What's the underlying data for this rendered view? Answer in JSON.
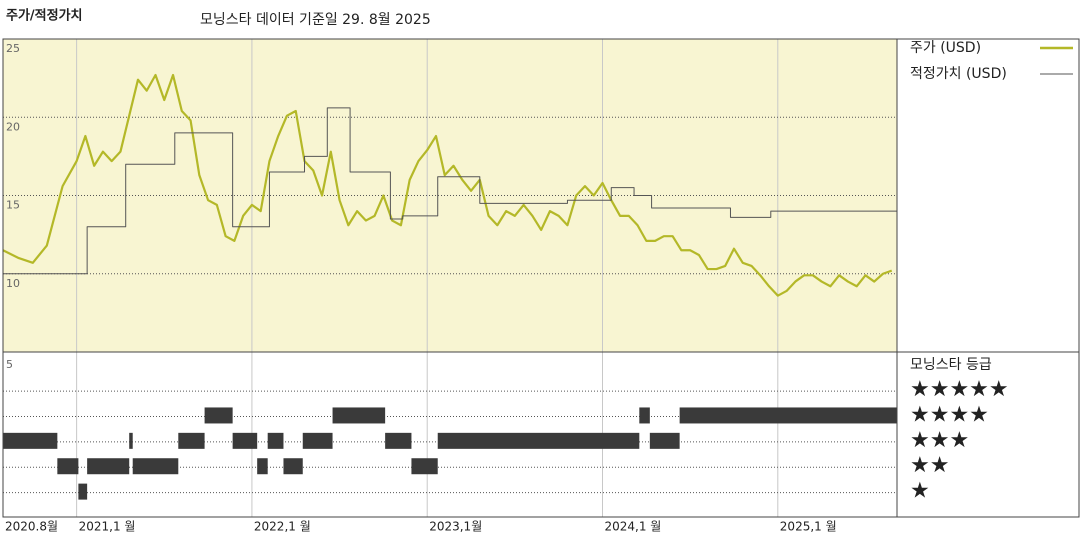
{
  "chart_data": [
    {
      "type": "line",
      "title": "주가/적정가치",
      "subtitle": "모닝스타 데이터 기준일 29. 8월 2025",
      "xlim": [
        2020.58,
        2025.68
      ],
      "xticks": [
        {
          "value": 2020.58,
          "label": "2020.8월"
        },
        {
          "value": 2021.0,
          "label": "2021,1 월"
        },
        {
          "value": 2022.0,
          "label": "2022,1 월"
        },
        {
          "value": 2023.0,
          "label": "2023,1월"
        },
        {
          "value": 2024.0,
          "label": "2024,1 월"
        },
        {
          "value": 2025.0,
          "label": "2025,1 월"
        }
      ],
      "ylim": [
        5,
        25
      ],
      "yticks": [
        10,
        15,
        20,
        25
      ],
      "grid": true,
      "background": "#f8f5d2",
      "series": [
        {
          "name": "주가 (USD)",
          "color": "#b4b828",
          "x": [
            2020.58,
            2020.67,
            2020.75,
            2020.83,
            2020.92,
            2021.0,
            2021.05,
            2021.1,
            2021.15,
            2021.2,
            2021.25,
            2021.3,
            2021.35,
            2021.4,
            2021.45,
            2021.5,
            2021.55,
            2021.6,
            2021.65,
            2021.7,
            2021.75,
            2021.8,
            2021.85,
            2021.9,
            2021.95,
            2022.0,
            2022.05,
            2022.1,
            2022.15,
            2022.2,
            2022.25,
            2022.3,
            2022.35,
            2022.4,
            2022.45,
            2022.5,
            2022.55,
            2022.6,
            2022.65,
            2022.7,
            2022.75,
            2022.8,
            2022.85,
            2022.9,
            2022.95,
            2023.0,
            2023.05,
            2023.1,
            2023.15,
            2023.2,
            2023.25,
            2023.3,
            2023.35,
            2023.4,
            2023.45,
            2023.5,
            2023.55,
            2023.6,
            2023.65,
            2023.7,
            2023.75,
            2023.8,
            2023.85,
            2023.9,
            2023.95,
            2024.0,
            2024.05,
            2024.1,
            2024.15,
            2024.2,
            2024.25,
            2024.3,
            2024.35,
            2024.4,
            2024.45,
            2024.5,
            2024.55,
            2024.6,
            2024.65,
            2024.7,
            2024.75,
            2024.8,
            2024.85,
            2024.9,
            2024.95,
            2025.0,
            2025.05,
            2025.1,
            2025.15,
            2025.2,
            2025.25,
            2025.3,
            2025.35,
            2025.4,
            2025.45,
            2025.5,
            2025.55,
            2025.6,
            2025.65
          ],
          "values": [
            11.5,
            11.0,
            10.7,
            11.8,
            15.6,
            17.2,
            18.8,
            16.9,
            17.8,
            17.2,
            17.8,
            20.1,
            22.4,
            21.7,
            22.7,
            21.1,
            22.7,
            20.4,
            19.8,
            16.3,
            14.7,
            14.4,
            12.4,
            12.1,
            13.7,
            14.4,
            14.0,
            17.2,
            18.8,
            20.1,
            20.4,
            17.2,
            16.6,
            15.0,
            17.8,
            14.7,
            13.1,
            14.0,
            13.4,
            13.7,
            15.0,
            13.4,
            13.1,
            16.0,
            17.2,
            17.9,
            18.8,
            16.3,
            16.9,
            16.0,
            15.3,
            16.0,
            13.7,
            13.1,
            14.0,
            13.7,
            14.4,
            13.7,
            12.8,
            14.0,
            13.7,
            13.1,
            15.0,
            15.6,
            15.0,
            15.8,
            14.7,
            13.7,
            13.7,
            13.1,
            12.1,
            12.1,
            12.4,
            12.4,
            11.5,
            11.5,
            11.2,
            10.3,
            10.3,
            10.5,
            11.6,
            10.7,
            10.5,
            9.9,
            9.2,
            8.6,
            8.9,
            9.5,
            9.9,
            9.9,
            9.5,
            9.2,
            9.9,
            9.5,
            9.2,
            9.9,
            9.5,
            10.0,
            10.2
          ]
        },
        {
          "name": "적정가치 (USD)",
          "color": "#555555",
          "step": "after",
          "x": [
            2020.58,
            2021.06,
            2021.28,
            2021.56,
            2021.89,
            2022.1,
            2022.3,
            2022.43,
            2022.56,
            2022.79,
            2022.86,
            2023.06,
            2023.3,
            2023.8,
            2024.05,
            2024.18,
            2024.28,
            2024.73,
            2024.96,
            2025.68
          ],
          "values": [
            10.0,
            13.0,
            17.0,
            19.0,
            13.0,
            16.5,
            17.5,
            20.6,
            16.5,
            13.5,
            13.7,
            16.2,
            14.5,
            14.7,
            15.5,
            15.0,
            14.2,
            13.6,
            14.0,
            14.0
          ]
        }
      ]
    },
    {
      "type": "rating",
      "title": "모닝스타 등급",
      "corner_label": "5",
      "color": "#3a3a3a",
      "ylim": [
        0,
        6.5
      ],
      "yticks": [
        {
          "value": 1,
          "label": "★"
        },
        {
          "value": 2,
          "label": "★★"
        },
        {
          "value": 3,
          "label": "★★★"
        },
        {
          "value": 4,
          "label": "★★★★"
        },
        {
          "value": 5,
          "label": "★★★★★"
        }
      ],
      "start": [
        2020.58,
        2020.89,
        2021.01,
        2021.06,
        2021.3,
        2021.32,
        2021.58,
        2021.73,
        2021.89,
        2022.03,
        2022.09,
        2022.18,
        2022.29,
        2022.46,
        2022.76,
        2022.91,
        2023.06,
        2024.21,
        2024.27,
        2024.44
      ],
      "end": [
        2020.89,
        2021.01,
        2021.06,
        2021.3,
        2021.32,
        2021.58,
        2021.73,
        2021.89,
        2022.03,
        2022.09,
        2022.18,
        2022.29,
        2022.46,
        2022.76,
        2022.91,
        2023.06,
        2024.21,
        2024.27,
        2024.44,
        2025.68
      ],
      "values": [
        3,
        2,
        1,
        2,
        3,
        2,
        3,
        4,
        3,
        2,
        3,
        2,
        3,
        4,
        3,
        2,
        3,
        4,
        3,
        4
      ]
    }
  ]
}
